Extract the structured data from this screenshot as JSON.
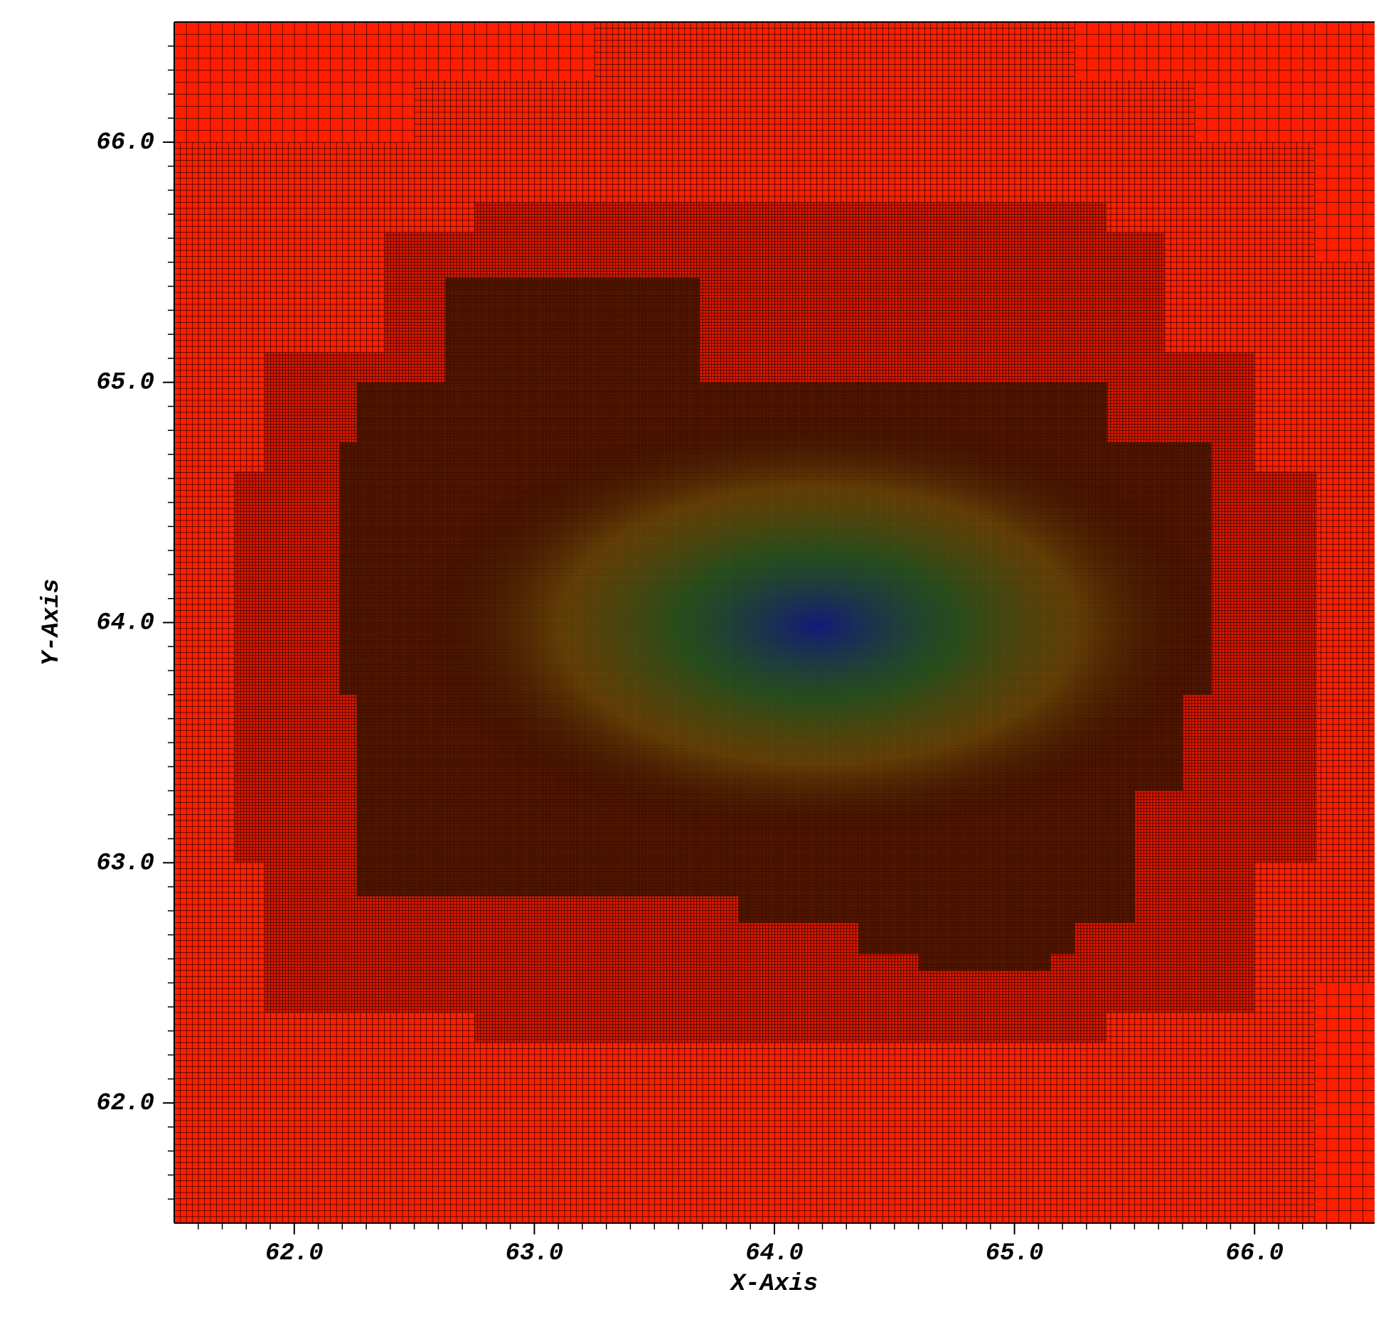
{
  "chart_data": {
    "type": "mesh",
    "x_label": "X-Axis",
    "y_label": "Y-Axis",
    "xlim": [
      61.5,
      66.5
    ],
    "ylim": [
      61.5,
      66.5
    ],
    "xticks": [
      {
        "value": 62,
        "label": "62.0"
      },
      {
        "value": 63,
        "label": "63.0"
      },
      {
        "value": 64,
        "label": "64.0"
      },
      {
        "value": 65,
        "label": "65.0"
      },
      {
        "value": 66,
        "label": "66.0"
      }
    ],
    "yticks": [
      {
        "value": 62,
        "label": "62.0"
      },
      {
        "value": 63,
        "label": "63.0"
      },
      {
        "value": 64,
        "label": "64.0"
      },
      {
        "value": 65,
        "label": "65.0"
      },
      {
        "value": 66,
        "label": "66.0"
      }
    ],
    "minor_tick_step": 0.1,
    "mesh_color": "#000000",
    "levels": [
      {
        "cell": 0.05,
        "color": "#ff1e00"
      },
      {
        "cell": 0.025,
        "color": "#ff1e00"
      },
      {
        "cell": 0.0125,
        "color": "#e01800"
      },
      {
        "cell": 0.00625,
        "color": "#802000"
      }
    ],
    "base_level": 1,
    "patches": [
      {
        "level": 0,
        "x": [
          61.5,
          63.25
        ],
        "y": [
          66.26,
          66.5
        ]
      },
      {
        "level": 0,
        "x": [
          61.5,
          62.5
        ],
        "y": [
          66.0,
          66.5
        ]
      },
      {
        "level": 0,
        "x": [
          65.25,
          66.5
        ],
        "y": [
          66.26,
          66.5
        ]
      },
      {
        "level": 0,
        "x": [
          65.75,
          66.5
        ],
        "y": [
          66.0,
          66.5
        ]
      },
      {
        "level": 0,
        "x": [
          66.25,
          66.5
        ],
        "y": [
          65.5,
          66.5
        ]
      },
      {
        "level": 0,
        "x": [
          66.25,
          66.5
        ],
        "y": [
          61.5,
          62.5
        ]
      },
      {
        "level": 2,
        "x": [
          62.75,
          65.385
        ],
        "y": [
          62.25,
          65.75
        ]
      },
      {
        "level": 2,
        "x": [
          62.375,
          65.625
        ],
        "y": [
          62.375,
          65.625
        ]
      },
      {
        "level": 2,
        "x": [
          61.875,
          66.0
        ],
        "y": [
          62.375,
          65.125
        ]
      },
      {
        "level": 2,
        "x": [
          61.75,
          66.26
        ],
        "y": [
          63.0,
          64.63
        ]
      },
      {
        "level": 3,
        "x": [
          62.63,
          63.69
        ],
        "y": [
          63.0,
          65.435
        ]
      },
      {
        "level": 3,
        "x": [
          62.26,
          65.385
        ],
        "y": [
          62.86,
          65.0
        ]
      },
      {
        "level": 3,
        "x": [
          62.19,
          65.82
        ],
        "y": [
          63.7,
          64.75
        ]
      },
      {
        "level": 3,
        "x": [
          62.5,
          65.7
        ],
        "y": [
          63.3,
          64.4
        ]
      },
      {
        "level": 3,
        "x": [
          63.85,
          65.5
        ],
        "y": [
          62.75,
          63.5
        ]
      },
      {
        "level": 3,
        "x": [
          64.35,
          65.25
        ],
        "y": [
          62.62,
          63.0
        ]
      },
      {
        "level": 3,
        "x": [
          64.6,
          65.15
        ],
        "y": [
          62.55,
          62.7
        ]
      }
    ]
  }
}
